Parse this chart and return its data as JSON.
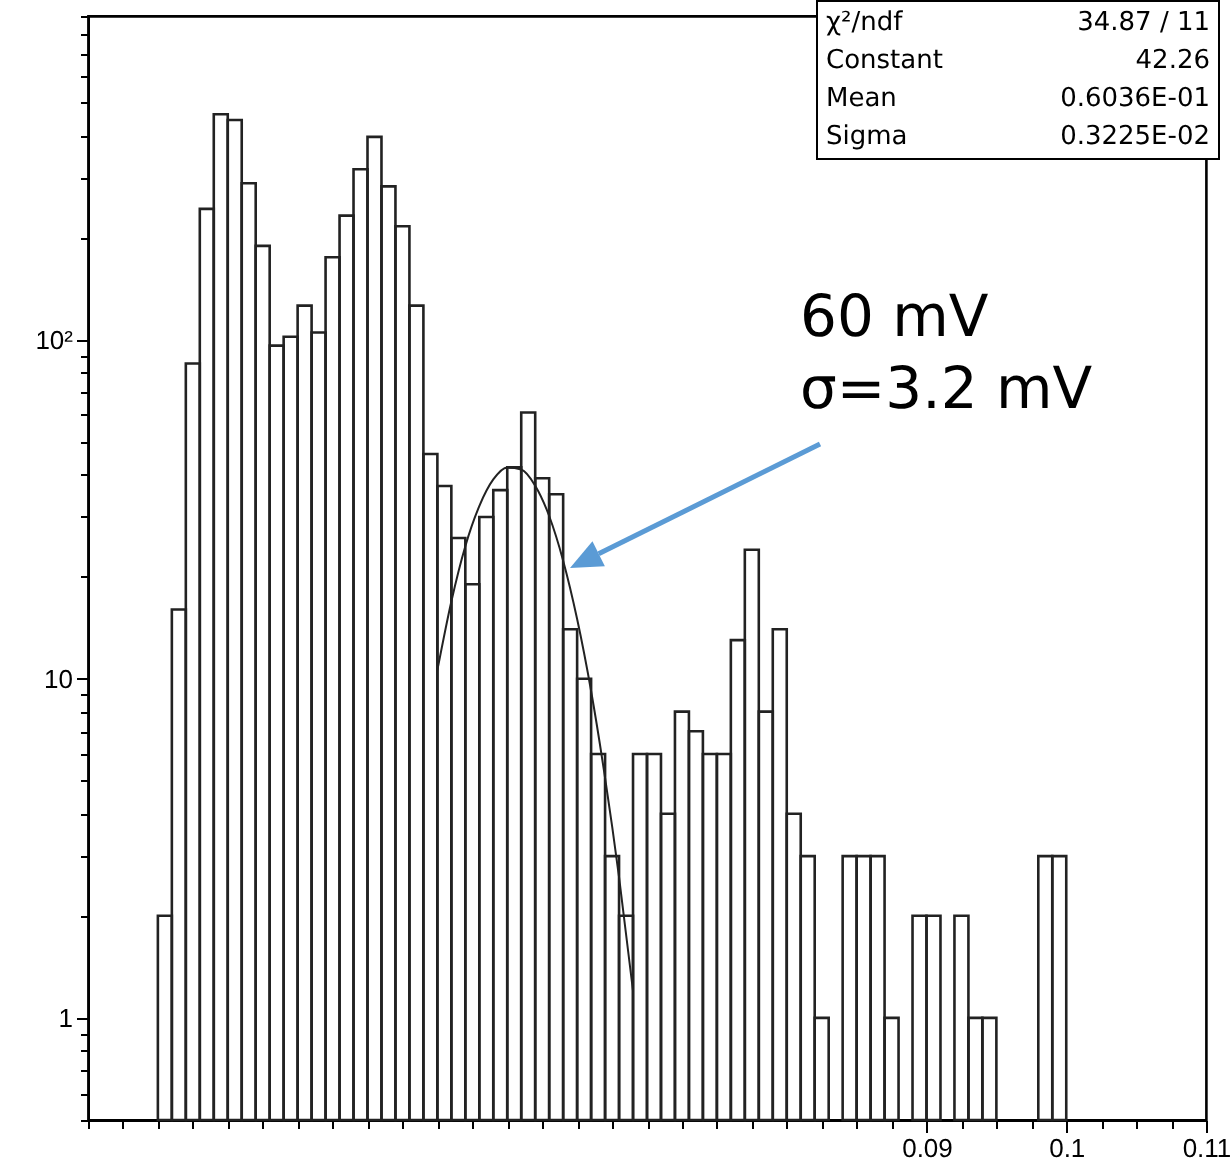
{
  "chart_data": {
    "type": "histogram",
    "series": [
      {
        "type": "histogram",
        "color": "#222222",
        "bins": [
          0.035,
          0.036,
          0.037,
          0.038,
          0.039,
          0.04,
          0.041,
          0.042,
          0.043,
          0.044,
          0.045,
          0.046,
          0.047,
          0.048,
          0.049,
          0.05,
          0.051,
          0.052,
          0.053,
          0.054,
          0.055,
          0.056,
          0.057,
          0.058,
          0.059,
          0.06,
          0.061,
          0.062,
          0.063,
          0.064,
          0.065,
          0.066,
          0.067,
          0.068,
          0.069,
          0.07,
          0.071,
          0.072,
          0.073,
          0.074,
          0.075,
          0.076,
          0.077,
          0.078,
          0.079,
          0.08,
          0.081,
          0.082,
          0.083,
          0.084,
          0.085,
          0.086,
          0.087,
          0.088,
          0.089,
          0.09,
          0.091,
          0.092,
          0.093,
          0.094,
          0.095,
          0.096,
          0.097,
          0.098,
          0.099,
          0.1
        ],
        "values": [
          2,
          16,
          85,
          243,
          462,
          444,
          289,
          189,
          96,
          102,
          126,
          105,
          175,
          232,
          318,
          396,
          283,
          216,
          126,
          46,
          37,
          26,
          19,
          30,
          36,
          42,
          61,
          39,
          35,
          14,
          10,
          6,
          3,
          2,
          6,
          6,
          4,
          8,
          7,
          6,
          6,
          13,
          24,
          8,
          14,
          4,
          3,
          1,
          null,
          3,
          3,
          3,
          1,
          null,
          2,
          2,
          null,
          2,
          1,
          1,
          null,
          null,
          null,
          3,
          3
        ]
      },
      {
        "type": "line",
        "color": "#222222",
        "x": [
          0.055,
          0.056,
          0.057,
          0.058,
          0.059,
          0.06,
          0.061,
          0.062,
          0.063,
          0.064,
          0.065,
          0.066,
          0.067,
          0.068,
          0.069
        ],
        "values": [
          10.6,
          16.9,
          24.6,
          32.3,
          38.7,
          42.0,
          41.4,
          37.1,
          30.2,
          22.3,
          15.0,
          9.2,
          5.1,
          2.6,
          1.2
        ]
      }
    ],
    "xlim": [
      0.03,
      0.11
    ],
    "xticks": [
      {
        "value": 0.03,
        "label": null
      },
      {
        "value": 0.0325,
        "label": null
      },
      {
        "value": 0.035,
        "label": null
      },
      {
        "value": 0.0375,
        "label": null
      },
      {
        "value": 0.04,
        "label": null
      },
      {
        "value": 0.0425,
        "label": null
      },
      {
        "value": 0.045,
        "label": null
      },
      {
        "value": 0.0475,
        "label": null
      },
      {
        "value": 0.05,
        "label": null
      },
      {
        "value": 0.0525,
        "label": null
      },
      {
        "value": 0.055,
        "label": null
      },
      {
        "value": 0.0575,
        "label": null
      },
      {
        "value": 0.06,
        "label": null
      },
      {
        "value": 0.0625,
        "label": null
      },
      {
        "value": 0.065,
        "label": null
      },
      {
        "value": 0.0675,
        "label": null
      },
      {
        "value": 0.07,
        "label": null
      },
      {
        "value": 0.0725,
        "label": null
      },
      {
        "value": 0.075,
        "label": null
      },
      {
        "value": 0.0775,
        "label": null
      },
      {
        "value": 0.08,
        "label": null
      },
      {
        "value": 0.0825,
        "label": null
      },
      {
        "value": 0.085,
        "label": null
      },
      {
        "value": 0.0875,
        "label": null
      },
      0.09,
      {
        "value": 0.0925,
        "label": null
      },
      {
        "value": 0.095,
        "label": null
      },
      {
        "value": 0.0975,
        "label": null
      },
      0.1,
      {
        "value": 0.1025,
        "label": null
      },
      {
        "value": 0.105,
        "label": null
      },
      {
        "value": 0.1075,
        "label": null
      },
      0.11
    ],
    "ylim": [
      0.5,
      900
    ],
    "yticks": [
      {
        "value": 0.5,
        "label": null
      },
      {
        "value": 0.6,
        "label": null
      },
      {
        "value": 0.7,
        "label": null
      },
      {
        "value": 0.8,
        "label": null
      },
      {
        "value": 0.9,
        "label": null
      },
      1,
      {
        "value": 2,
        "label": null
      },
      {
        "value": 3,
        "label": null
      },
      {
        "value": 4,
        "label": null
      },
      {
        "value": 5,
        "label": null
      },
      {
        "value": 6,
        "label": null
      },
      {
        "value": 7,
        "label": null
      },
      {
        "value": 8,
        "label": null
      },
      {
        "value": 9,
        "label": null
      },
      10,
      {
        "value": 20,
        "label": null
      },
      {
        "value": 30,
        "label": null
      },
      {
        "value": 40,
        "label": null
      },
      {
        "value": 50,
        "label": null
      },
      {
        "value": 60,
        "label": null
      },
      {
        "value": 70,
        "label": null
      },
      {
        "value": 80,
        "label": null
      },
      {
        "value": 90,
        "label": null
      },
      {
        "value": 100,
        "label": "10²"
      },
      {
        "value": 200,
        "label": null
      },
      {
        "value": 300,
        "label": null
      },
      {
        "value": 400,
        "label": null
      },
      {
        "value": 500,
        "label": null
      },
      {
        "value": 600,
        "label": null
      },
      {
        "value": 700,
        "label": null
      },
      {
        "value": 800,
        "label": null
      },
      {
        "value": 900,
        "label": null
      }
    ],
    "log": true,
    "annotations": [
      "χ²/ndf 34.87 / 11",
      "Constant 42.26",
      "Mean 0.6036E-01",
      "Sigma 0.3225E-02",
      "60 mV",
      "σ=3.2 mV"
    ]
  }
}
